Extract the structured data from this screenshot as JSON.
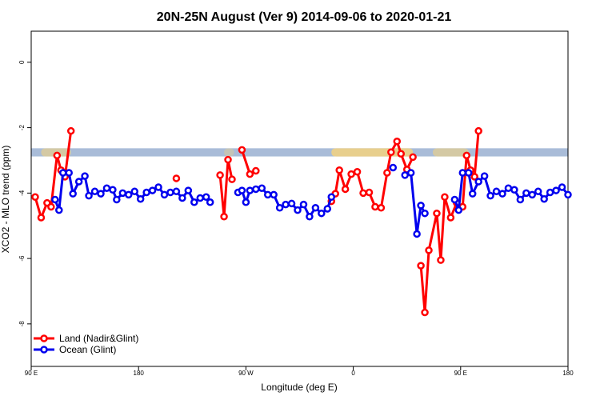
{
  "chart_data": {
    "type": "line",
    "title": "20N-25N August (Ver 9)   2014-09-06 to 2020-01-21",
    "xlabel": "Longitude (deg E)",
    "ylabel": "XCO2 - MLO trend (ppm)",
    "xlim": [
      -90,
      180
    ],
    "ylim": [
      -9.3,
      0.95
    ],
    "x_ticks": [
      {
        "value": -90,
        "label": "90 E"
      },
      {
        "value": -36,
        "label": "180"
      },
      {
        "value": 18,
        "label": "90 W"
      },
      {
        "value": 72,
        "label": "0"
      },
      {
        "value": 126,
        "label": "90 E"
      },
      {
        "value": 180,
        "label": "180"
      }
    ],
    "y_ticks": [
      0,
      -2,
      -4,
      -6,
      -8
    ],
    "legend": {
      "position": "bottom-left",
      "entries": [
        {
          "label": "Land (Nadir&Glint)",
          "color": "#ff0000"
        },
        {
          "label": "Ocean (Glint)",
          "color": "#0000ee"
        }
      ]
    },
    "band": {
      "y_range": [
        -2.63,
        -2.88
      ],
      "color": "#a9bcd8",
      "highlight_color": "#f7d37a"
    },
    "series": [
      {
        "name": "Land (Nadir&Glint)",
        "color": "#ff0000",
        "segments": [
          [
            [
              -88,
              -4.12
            ],
            [
              -85,
              -4.75
            ],
            [
              -82,
              -4.3
            ],
            [
              -80,
              -4.42
            ],
            [
              -77,
              -2.85
            ],
            [
              -75,
              -3.3
            ],
            [
              -73,
              -3.5
            ],
            [
              -70,
              -2.1
            ]
          ],
          [
            [
              -17,
              -3.55
            ]
          ],
          [
            [
              5,
              -3.45
            ],
            [
              7,
              -4.72
            ],
            [
              9,
              -2.98
            ],
            [
              11,
              -3.58
            ]
          ],
          [
            [
              16,
              -2.68
            ],
            [
              20,
              -3.42
            ],
            [
              23,
              -3.32
            ]
          ],
          [
            [
              61,
              -4.25
            ],
            [
              63,
              -4.02
            ],
            [
              65,
              -3.3
            ],
            [
              68,
              -3.88
            ],
            [
              71,
              -3.42
            ],
            [
              74,
              -3.35
            ],
            [
              77,
              -4.0
            ],
            [
              80,
              -3.98
            ],
            [
              83,
              -4.42
            ],
            [
              86,
              -4.45
            ],
            [
              89,
              -3.38
            ],
            [
              91,
              -2.75
            ],
            [
              94,
              -2.42
            ],
            [
              96,
              -2.8
            ],
            [
              99,
              -3.28
            ],
            [
              102,
              -2.9
            ]
          ],
          [
            [
              106,
              -6.22
            ],
            [
              108,
              -7.65
            ],
            [
              110,
              -5.75
            ],
            [
              114,
              -4.62
            ],
            [
              116,
              -6.05
            ],
            [
              118,
              -4.12
            ],
            [
              121,
              -4.75
            ],
            [
              124,
              -4.3
            ],
            [
              127,
              -4.42
            ],
            [
              129,
              -2.85
            ],
            [
              131,
              -3.3
            ],
            [
              133,
              -3.5
            ],
            [
              135,
              -2.1
            ]
          ]
        ]
      },
      {
        "name": "Ocean (Glint)",
        "color": "#0000ee",
        "segments": [
          [
            [
              -78,
              -4.2
            ],
            [
              -76,
              -4.52
            ],
            [
              -74,
              -3.38
            ],
            [
              -71,
              -3.38
            ],
            [
              -69,
              -4.02
            ],
            [
              -66,
              -3.65
            ],
            [
              -63,
              -3.48
            ],
            [
              -61,
              -4.08
            ],
            [
              -58,
              -3.95
            ],
            [
              -55,
              -4.02
            ],
            [
              -52,
              -3.85
            ],
            [
              -49,
              -3.9
            ],
            [
              -47,
              -4.2
            ],
            [
              -44,
              -4.0
            ],
            [
              -41,
              -4.05
            ],
            [
              -38,
              -3.95
            ],
            [
              -35,
              -4.18
            ],
            [
              -32,
              -3.98
            ],
            [
              -29,
              -3.92
            ],
            [
              -26,
              -3.82
            ],
            [
              -23,
              -4.05
            ],
            [
              -20,
              -3.98
            ],
            [
              -17,
              -3.95
            ],
            [
              -14,
              -4.15
            ],
            [
              -11,
              -3.92
            ],
            [
              -8,
              -4.28
            ],
            [
              -5,
              -4.15
            ],
            [
              -2,
              -4.12
            ],
            [
              0,
              -4.28
            ]
          ],
          [
            [
              14,
              -3.98
            ],
            [
              16,
              -3.92
            ],
            [
              18,
              -4.28
            ],
            [
              20,
              -3.92
            ],
            [
              23,
              -3.88
            ],
            [
              26,
              -3.85
            ],
            [
              29,
              -4.05
            ],
            [
              32,
              -4.05
            ],
            [
              35,
              -4.45
            ],
            [
              38,
              -4.35
            ],
            [
              41,
              -4.32
            ],
            [
              44,
              -4.52
            ],
            [
              47,
              -4.35
            ],
            [
              50,
              -4.72
            ],
            [
              53,
              -4.45
            ],
            [
              56,
              -4.62
            ],
            [
              59,
              -4.48
            ],
            [
              61,
              -4.12
            ]
          ],
          [
            [
              92,
              -3.22
            ]
          ],
          [
            [
              98,
              -3.45
            ],
            [
              101,
              -3.38
            ],
            [
              104,
              -5.25
            ],
            [
              106,
              -4.38
            ],
            [
              108,
              -4.62
            ]
          ],
          [
            [
              123,
              -4.2
            ],
            [
              125,
              -4.52
            ],
            [
              127,
              -3.38
            ],
            [
              130,
              -3.38
            ],
            [
              132,
              -4.02
            ],
            [
              135,
              -3.65
            ],
            [
              138,
              -3.48
            ],
            [
              141,
              -4.08
            ],
            [
              144,
              -3.95
            ],
            [
              147,
              -4.02
            ],
            [
              150,
              -3.85
            ],
            [
              153,
              -3.9
            ],
            [
              156,
              -4.2
            ],
            [
              159,
              -4.0
            ],
            [
              162,
              -4.05
            ],
            [
              165,
              -3.95
            ],
            [
              168,
              -4.18
            ],
            [
              171,
              -3.98
            ],
            [
              174,
              -3.92
            ],
            [
              177,
              -3.82
            ],
            [
              180,
              -4.05
            ]
          ]
        ]
      }
    ]
  }
}
